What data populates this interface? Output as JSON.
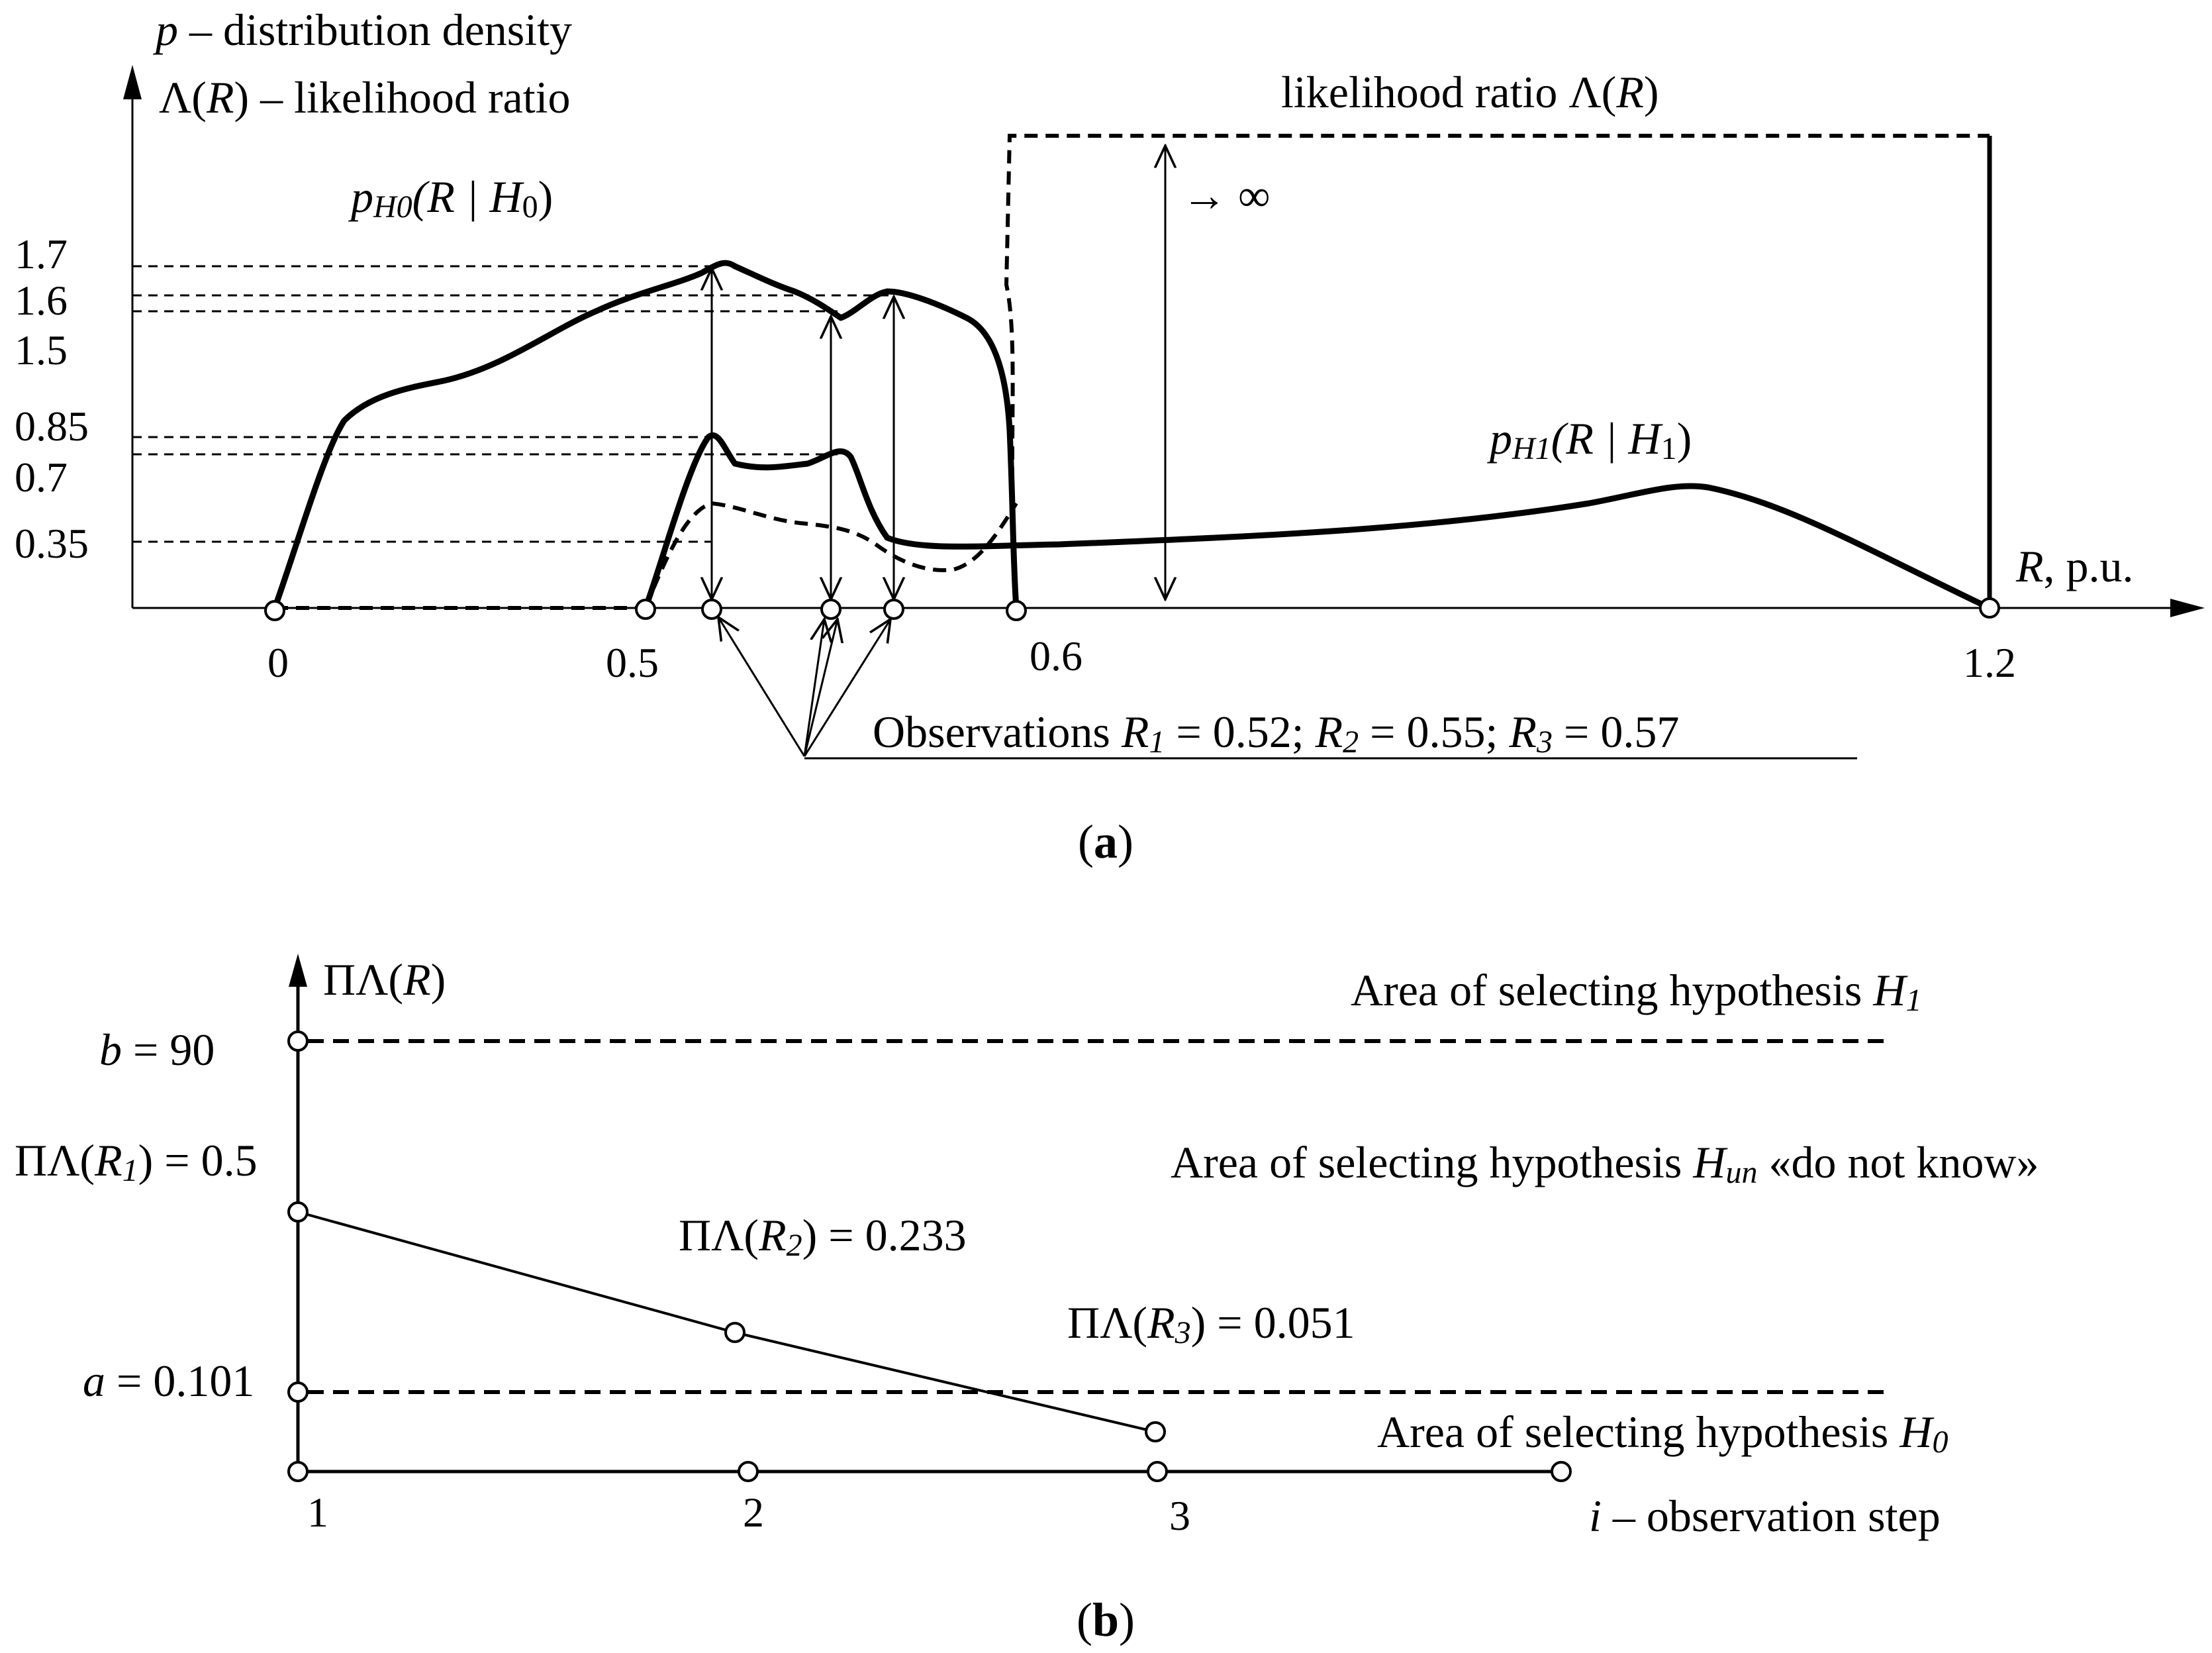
{
  "panel_a": {
    "y_axis_label_1_prefix": "p",
    "y_axis_label_1_rest": " – distribution density",
    "y_axis_label_2_prefix": "Λ(",
    "y_axis_label_2_var": "R",
    "y_axis_label_2_rest": ") – likelihood ratio",
    "x_axis_label_var": "R",
    "x_axis_label_rest": ", p.u.",
    "y_ticks": [
      "1.7",
      "1.6",
      "1.5",
      "0.85",
      "0.7",
      "0.35"
    ],
    "x_ticks": [
      "0",
      "0.5",
      "0.6",
      "1.2"
    ],
    "curve_h0_label": "pH0(R | H0)",
    "curve_h0_p": "p",
    "curve_h0_sub": "H0",
    "curve_h0_args": "(R | H",
    "curve_h0_args_sub": "0",
    "curve_h0_close": ")",
    "curve_h1_p": "p",
    "curve_h1_sub": "H1",
    "curve_h1_args": "(R | H",
    "curve_h1_args_sub": "1",
    "curve_h1_close": ")",
    "likelihood_label_prefix": "likelihood ratio Λ(",
    "likelihood_label_var": "R",
    "likelihood_label_close": ")",
    "infinity_label": "→ ∞",
    "observations_prefix": "Observations ",
    "obs_r1_var": "R",
    "obs_r1_sub": "1",
    "obs_r1_val": " = 0.52; ",
    "obs_r2_var": "R",
    "obs_r2_sub": "2",
    "obs_r2_val": " = 0.55; ",
    "obs_r3_var": "R",
    "obs_r3_sub": "3",
    "obs_r3_val": " = 0.57",
    "caption": "a"
  },
  "panel_b": {
    "y_axis_label_prefix": "ΠΛ(",
    "y_axis_label_var": "R",
    "y_axis_label_close": ")",
    "b_label_var": "b",
    "b_label_val": " = 90",
    "a_label_var": "a",
    "a_label_val": " = 0.101",
    "pl_r1_prefix": "ΠΛ(",
    "pl_r1_var": "R",
    "pl_r1_sub": "1",
    "pl_r1_val": ") = 0.5",
    "pl_r2_prefix": "ΠΛ(",
    "pl_r2_var": "R",
    "pl_r2_sub": "2",
    "pl_r2_val": ") = 0.233",
    "pl_r3_prefix": "ΠΛ(",
    "pl_r3_var": "R",
    "pl_r3_sub": "3",
    "pl_r3_val": ") = 0.051",
    "area_h1_text": "Area of selecting hypothesis ",
    "area_h1_var": "H",
    "area_h1_sub": "1",
    "area_hun_text": "Area of selecting hypothesis  ",
    "area_hun_var": "H",
    "area_hun_sub": "un",
    "area_hun_rest": " «do not know»",
    "area_h0_text": "Area of selecting hypothesis ",
    "area_h0_var": "H",
    "area_h0_sub": "0",
    "x_ticks": [
      "1",
      "2",
      "3"
    ],
    "x_axis_label_var": "i",
    "x_axis_label_rest": " – observation step",
    "caption": "b"
  }
}
